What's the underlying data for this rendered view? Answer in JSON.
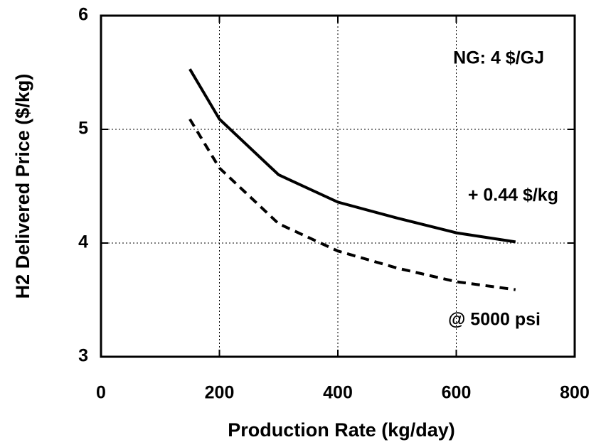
{
  "chart_data": {
    "type": "line",
    "x_label": "Production Rate (kg/day)",
    "y_label": "H2 Delivered Price ($/kg)",
    "annotations": [
      "NG: 4 $/GJ",
      "+ 0.44 $/kg",
      "@ 5000 psi"
    ],
    "series": [
      {
        "color": "#000000",
        "dashed": false,
        "x": [
          150,
          200,
          300,
          400,
          500,
          600,
          700
        ],
        "values": [
          5.53,
          5.09,
          4.6,
          4.36,
          4.22,
          4.09,
          4.01
        ]
      },
      {
        "color": "#000000",
        "dashed": true,
        "x": [
          150,
          200,
          300,
          400,
          500,
          600,
          700
        ],
        "values": [
          5.09,
          4.66,
          4.17,
          3.93,
          3.78,
          3.66,
          3.59
        ]
      }
    ],
    "xlim": [
      0,
      800
    ],
    "xticks": [
      0,
      200,
      400,
      600,
      800
    ],
    "ylim": [
      3,
      6
    ],
    "yticks": [
      3,
      4,
      5,
      6
    ],
    "grid": true
  }
}
